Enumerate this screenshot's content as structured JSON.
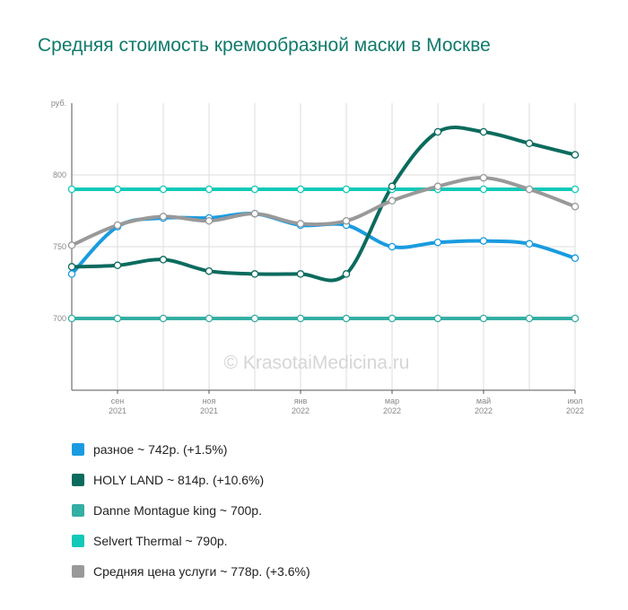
{
  "title": "Средняя стоимость кремообразной маски в Москве",
  "watermark": "© KrasotaiMedicina.ru",
  "chart_data": {
    "type": "line",
    "title": "Средняя стоимость кремообразной маски в Москве",
    "ylabel": "руб.",
    "ylim": [
      650,
      850
    ],
    "y_ticks": [
      700,
      750,
      800
    ],
    "grid": true,
    "legend_position": "bottom",
    "x_ticks": [
      {
        "month": "сен",
        "year": "2021"
      },
      {
        "month": "ноя",
        "year": "2021"
      },
      {
        "month": "янв",
        "year": "2022"
      },
      {
        "month": "мар",
        "year": "2022"
      },
      {
        "month": "май",
        "year": "2022"
      },
      {
        "month": "июл",
        "year": "2022"
      }
    ],
    "series": [
      {
        "name": "разное",
        "color": "#1a9be0",
        "values": [
          731,
          764,
          770,
          770,
          773,
          765,
          765,
          750,
          753,
          754,
          752,
          742
        ]
      },
      {
        "name": "HOLY LAND",
        "color": "#0b6b5e",
        "values": [
          736,
          737,
          741,
          733,
          731,
          731,
          731,
          792,
          830,
          830,
          822,
          814
        ]
      },
      {
        "name": "Danne Montague king",
        "color": "#35aea3",
        "values": [
          700,
          700,
          700,
          700,
          700,
          700,
          700,
          700,
          700,
          700,
          700,
          700
        ]
      },
      {
        "name": "Selvert Thermal",
        "color": "#12c9b8",
        "values": [
          790,
          790,
          790,
          790,
          790,
          790,
          790,
          790,
          790,
          790,
          790,
          790
        ]
      },
      {
        "name": "Средняя цена услуги",
        "color": "#999999",
        "values": [
          751,
          765,
          771,
          768,
          773,
          766,
          768,
          782,
          792,
          798,
          790,
          778
        ]
      }
    ]
  },
  "legend": [
    {
      "label": "разное ~ 742р. (+1.5%)",
      "color": "#1a9be0"
    },
    {
      "label": "HOLY LAND ~ 814р. (+10.6%)",
      "color": "#0b6b5e"
    },
    {
      "label": "Danne Montague king ~ 700р.",
      "color": "#35aea3"
    },
    {
      "label": "Selvert Thermal ~ 790р.",
      "color": "#12c9b8"
    },
    {
      "label": "Средняя цена услуги ~ 778р. (+3.6%)",
      "color": "#999999"
    }
  ]
}
